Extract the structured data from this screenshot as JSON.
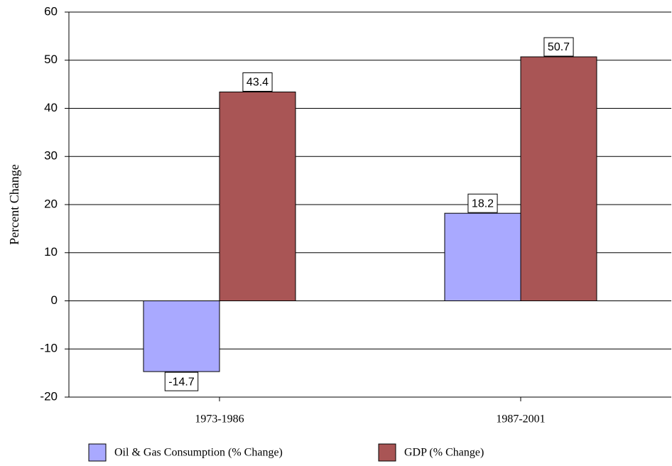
{
  "chart_data": {
    "type": "bar",
    "y_label": "Percent Change",
    "categories": [
      "1973-1986",
      "1987-2001"
    ],
    "series": [
      {
        "name": "Oil & Gas Consumption (% Change)",
        "color": "#a9a9ff",
        "values": [
          -14.7,
          18.2
        ]
      },
      {
        "name": "GDP (% Change)",
        "color": "#a95555",
        "values": [
          43.4,
          50.7
        ]
      }
    ],
    "ylim": [
      -20,
      60
    ],
    "yticks": [
      -20,
      -10,
      0,
      10,
      20,
      30,
      40,
      50,
      60
    ],
    "grid": true,
    "legend": "bottom"
  }
}
